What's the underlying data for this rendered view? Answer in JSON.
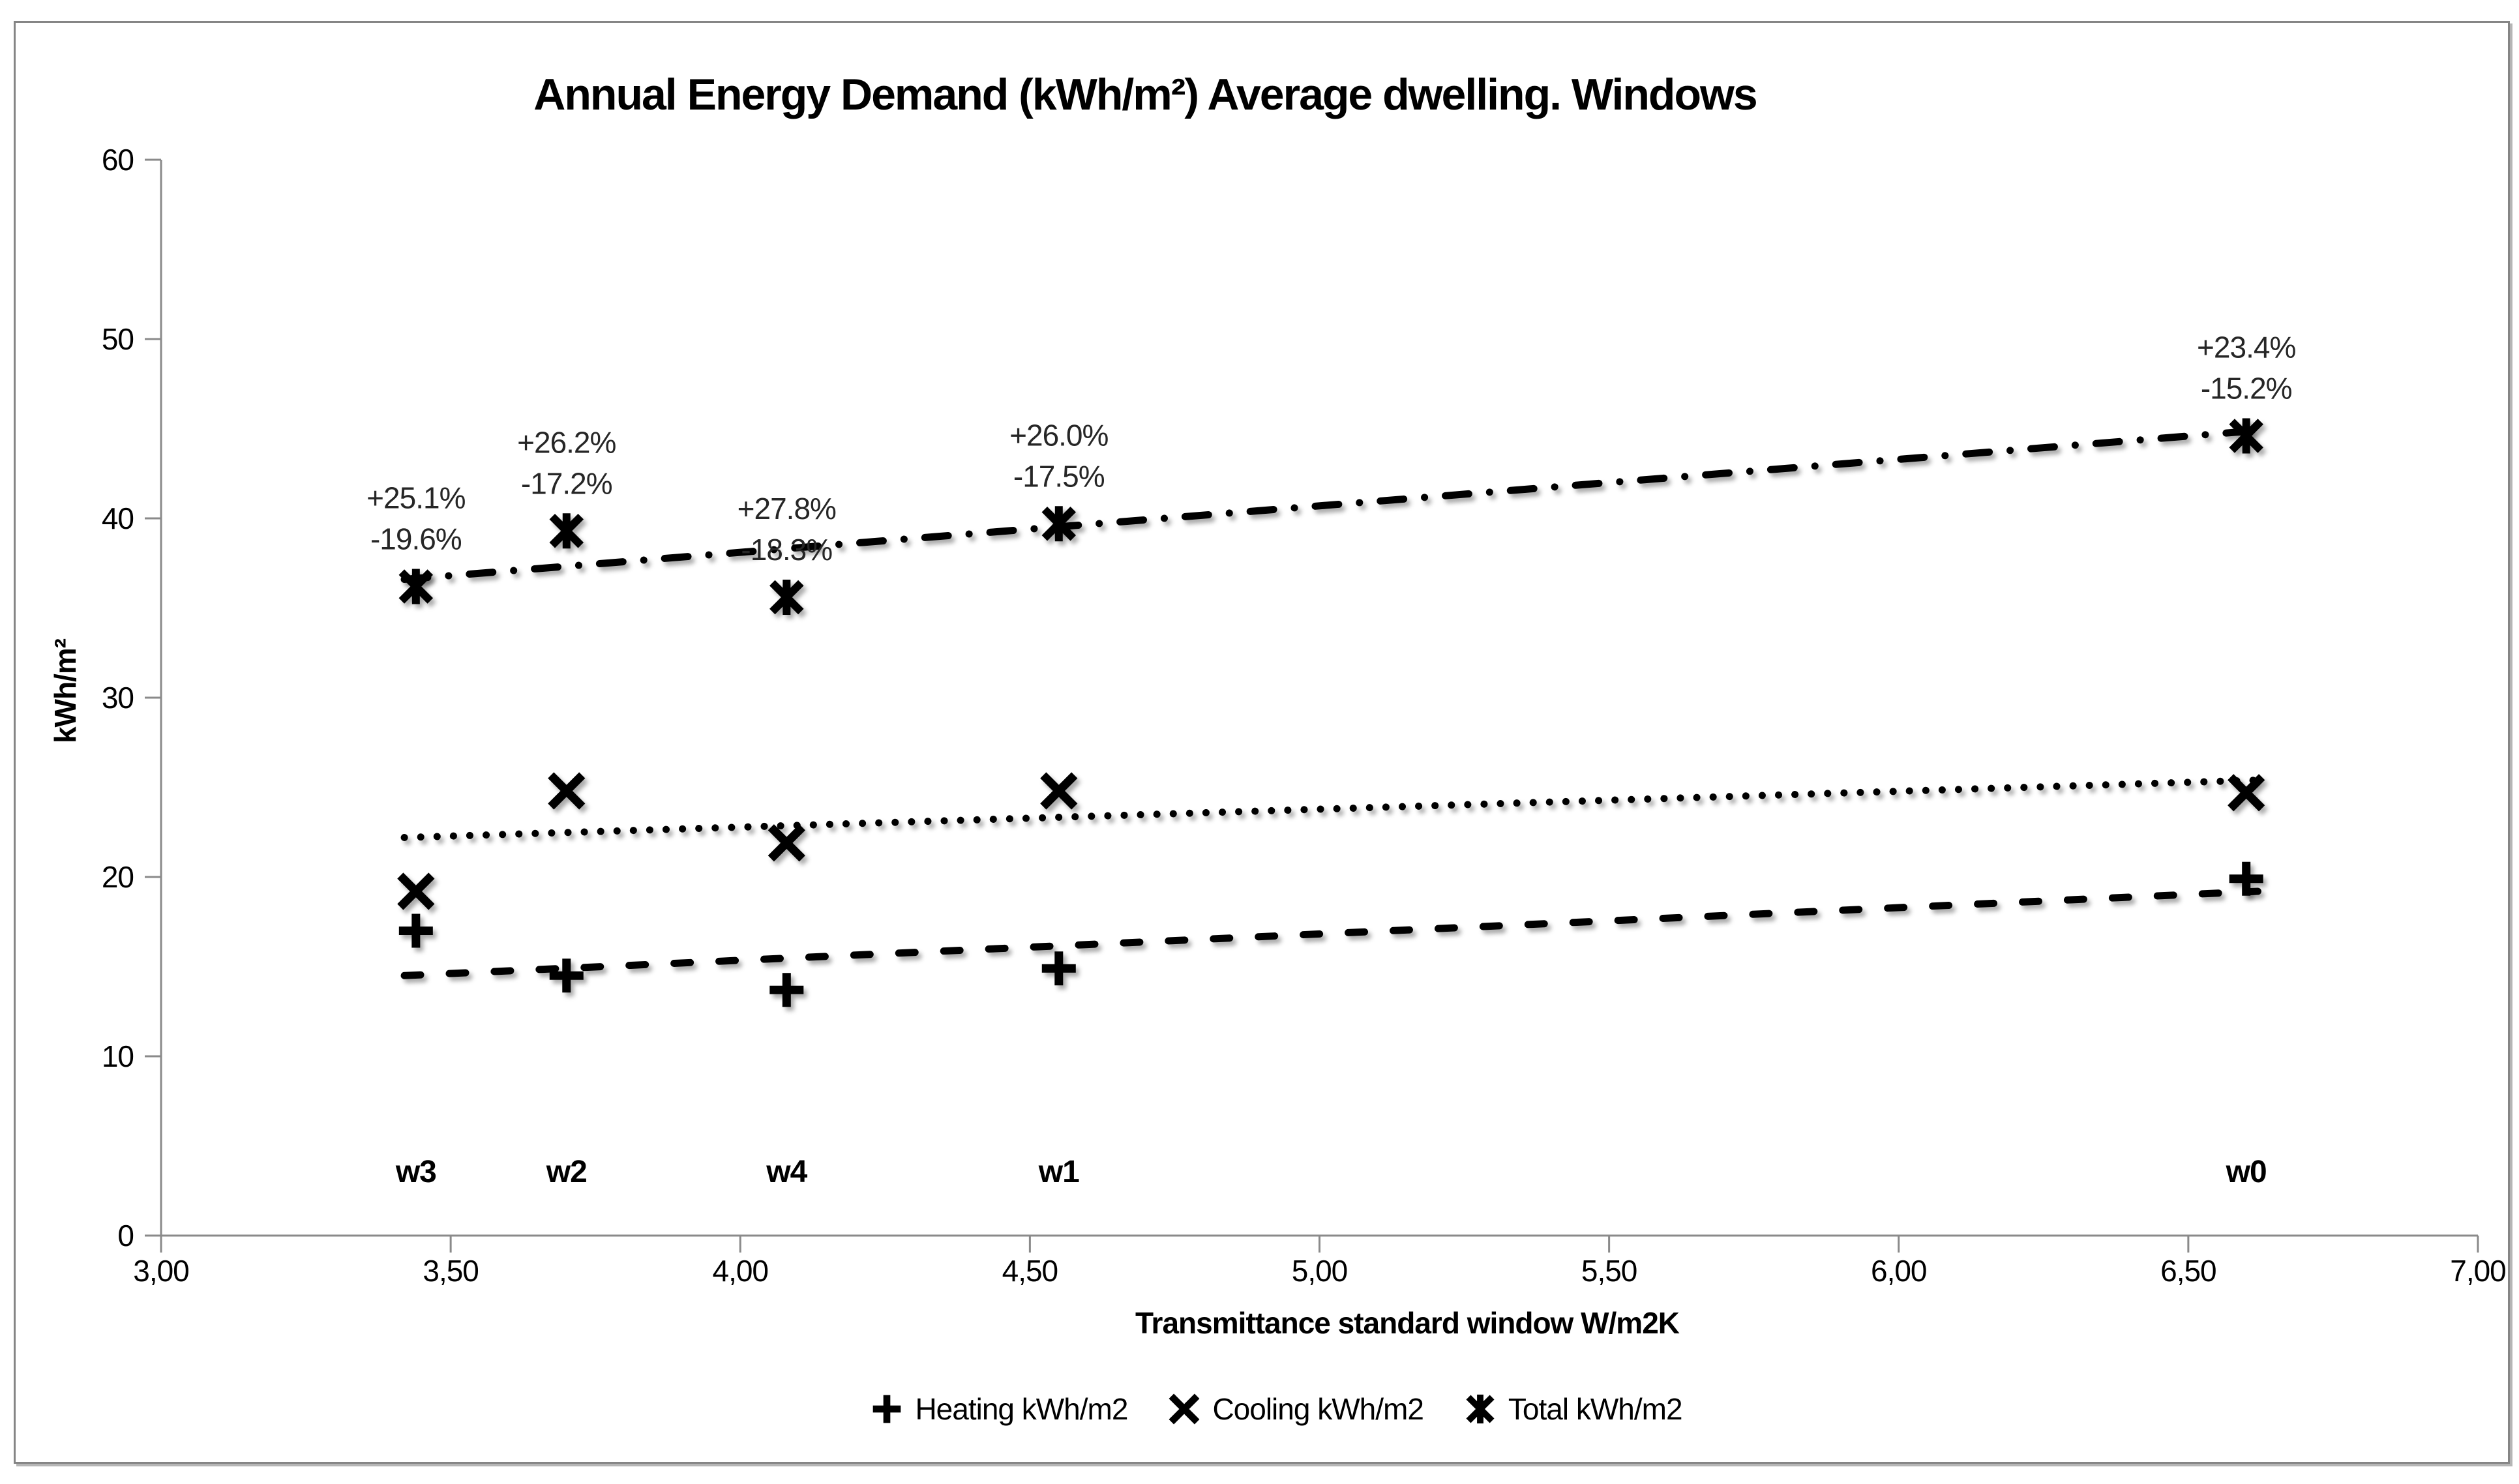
{
  "chart_data": {
    "type": "scatter",
    "title": "Annual Energy Demand (kWh/m²) Average dwelling. Windows",
    "xlabel": "Transmittance standard window W/m2K",
    "ylabel": "kWh/m²",
    "xlim": [
      3.0,
      7.0
    ],
    "ylim": [
      0,
      60
    ],
    "grid": false,
    "legend_position": "bottom-center",
    "x_tick_labels": [
      "3,00",
      "3,50",
      "4,00",
      "4,50",
      "5,00",
      "5,50",
      "6,00",
      "6,50",
      "7,00"
    ],
    "x_tick_values": [
      3.0,
      3.5,
      4.0,
      4.5,
      5.0,
      5.5,
      6.0,
      6.5,
      7.0
    ],
    "y_ticks": [
      0,
      10,
      20,
      30,
      40,
      50,
      60
    ],
    "windows": [
      {
        "label": "w3",
        "transmittance": 3.44,
        "heating": 17.0,
        "cooling": 19.2,
        "total": 36.2,
        "annotation": [
          "+25.1%",
          "-19.6%"
        ]
      },
      {
        "label": "w2",
        "transmittance": 3.7,
        "heating": 14.5,
        "cooling": 24.8,
        "total": 39.3,
        "annotation": [
          "+26.2%",
          "-17.2%"
        ]
      },
      {
        "label": "w4",
        "transmittance": 4.08,
        "heating": 13.7,
        "cooling": 21.9,
        "total": 35.6,
        "annotation": [
          "+27.8%",
          "-18.3%"
        ]
      },
      {
        "label": "w1",
        "transmittance": 4.55,
        "heating": 14.9,
        "cooling": 24.8,
        "total": 39.7,
        "annotation": [
          "+26.0%",
          "-17.5%"
        ]
      },
      {
        "label": "w0",
        "transmittance": 6.6,
        "heating": 19.9,
        "cooling": 24.7,
        "total": 44.6,
        "annotation": [
          "+23.4%",
          "-15.2%"
        ]
      }
    ],
    "series": [
      {
        "name": "Heating kWh/m2",
        "key": "heating",
        "marker": "plus",
        "line_style": "dashed",
        "trend": [
          [
            3.42,
            14.5
          ],
          [
            6.62,
            19.2
          ]
        ]
      },
      {
        "name": "Cooling kWh/m2",
        "key": "cooling",
        "marker": "x",
        "line_style": "dotted",
        "trend": [
          [
            3.42,
            22.2
          ],
          [
            6.62,
            25.4
          ]
        ]
      },
      {
        "name": "Total kWh/m2",
        "key": "total",
        "marker": "asterisk",
        "line_style": "dashdot",
        "trend": [
          [
            3.42,
            36.6
          ],
          [
            6.62,
            44.9
          ]
        ]
      }
    ],
    "colors": {
      "marker": "#000000",
      "trendline": "#000000",
      "axis": "#8a8a8a",
      "text": "#000000",
      "annotation": "#262626",
      "frame": "#858585"
    }
  }
}
